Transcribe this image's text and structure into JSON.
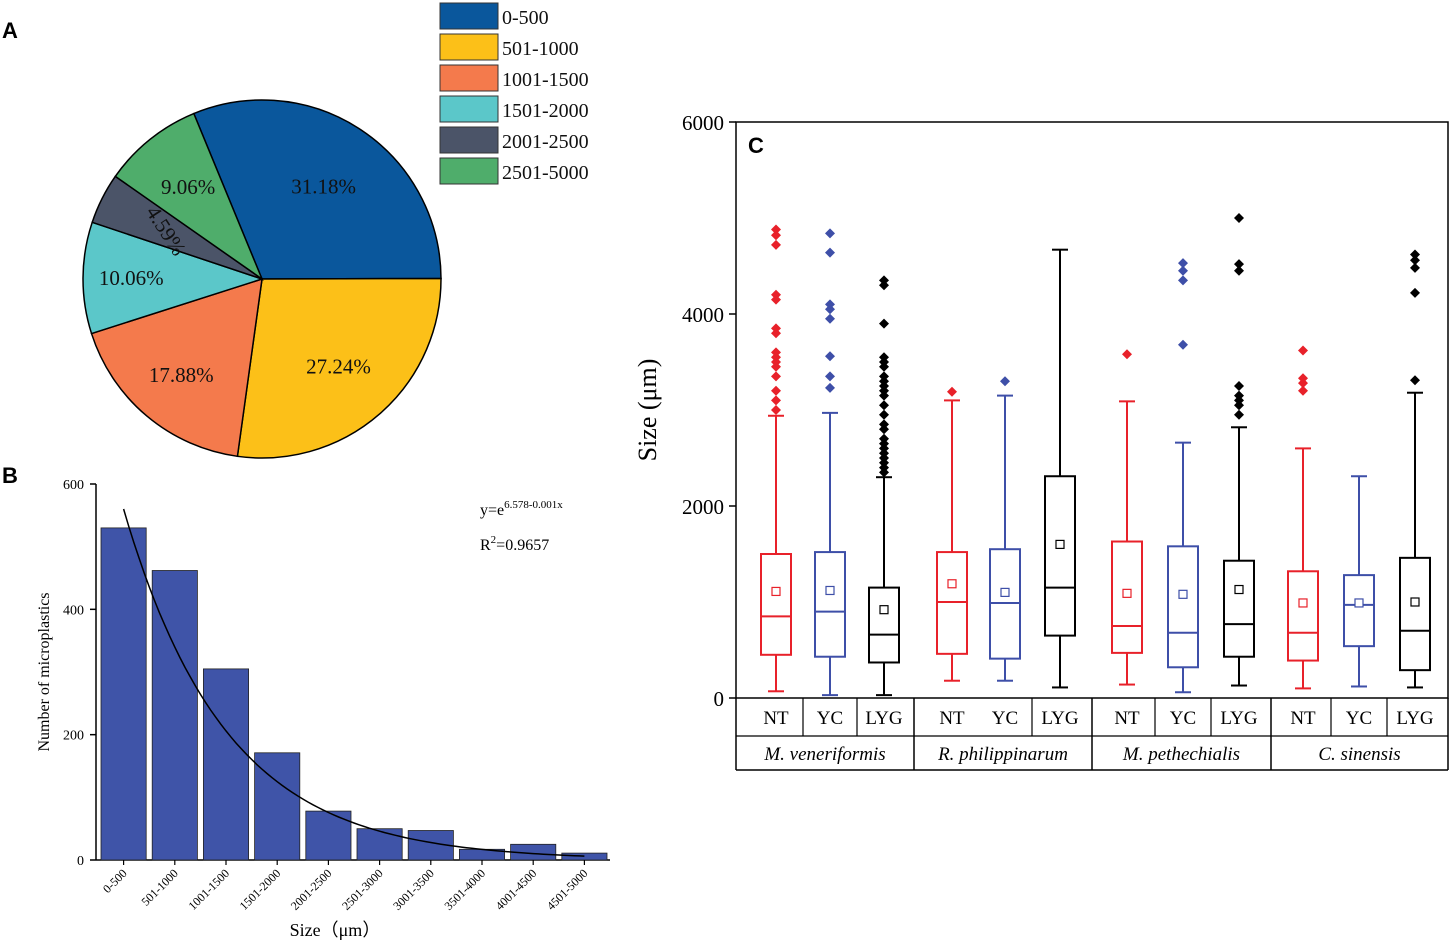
{
  "colors": {
    "pie": [
      "#0a579c",
      "#fcc018",
      "#f47a4c",
      "#5bc7c9",
      "#4b5468",
      "#4fad6b"
    ],
    "bar": "#3f54a8",
    "nt": "#e8212a",
    "yc": "#3e4fa8",
    "lyg": "#000000"
  },
  "chart_data": [
    {
      "panel": "A",
      "type": "pie",
      "categories": [
        "0-500",
        "501-1000",
        "1001-1500",
        "1501-2000",
        "2001-2500",
        "2501-5000"
      ],
      "values": [
        31.18,
        27.24,
        17.88,
        10.06,
        4.59,
        9.06
      ],
      "labels": [
        "31.18%",
        "27.24%",
        "17.88%",
        "10.06%",
        "4.59%",
        "9.06%"
      ],
      "legend": "top-right"
    },
    {
      "panel": "B",
      "type": "bar",
      "categories": [
        "0-500",
        "501-1000",
        "1001-1500",
        "1501-2000",
        "2001-2500",
        "2501-3000",
        "3001-3500",
        "3501-4000",
        "4001-4500",
        "4501-5000"
      ],
      "values": [
        530,
        462,
        305,
        171,
        78,
        50,
        47,
        17,
        25,
        11
      ],
      "xlabel": "Size（μm）",
      "ylabel": "Number of microplastics",
      "ylim": [
        0,
        600
      ],
      "yticks": [
        0,
        200,
        400,
        600
      ],
      "fit": {
        "a": 6.578,
        "b": 0.001
      },
      "equation_base": "y=e",
      "equation_exp": "6.578-0.001x",
      "r2_prefix": "R",
      "r2_sup": "2",
      "r2_value": "=0.9657"
    },
    {
      "panel": "C",
      "type": "box",
      "ylabel": "Size (μm)",
      "ylim": [
        0,
        6000
      ],
      "yticks": [
        0,
        2000,
        4000,
        6000
      ],
      "species": [
        "M. veneriformis",
        "R. philippinarum",
        "M. pethechialis",
        "C. sinensis"
      ],
      "sites": [
        "NT",
        "YC",
        "LYG"
      ],
      "boxes": [
        {
          "site": "NT",
          "min": 70,
          "q1": 450,
          "median": 850,
          "q3": 1500,
          "max": 2940,
          "mean": 1110,
          "outliers": [
            3000,
            3100,
            3200,
            3350,
            3450,
            3500,
            3550,
            3600,
            3800,
            3850,
            4150,
            4200,
            4720,
            4820,
            4880
          ]
        },
        {
          "site": "YC",
          "min": 30,
          "q1": 430,
          "median": 900,
          "q3": 1520,
          "max": 2970,
          "mean": 1120,
          "outliers": [
            3230,
            3350,
            3560,
            3950,
            4050,
            4100,
            4640,
            4840
          ]
        },
        {
          "site": "LYG",
          "min": 30,
          "q1": 370,
          "median": 660,
          "q3": 1150,
          "max": 2300,
          "mean": 920,
          "outliers": [
            2350,
            2400,
            2450,
            2500,
            2550,
            2600,
            2650,
            2700,
            2800,
            2850,
            2950,
            3050,
            3150,
            3200,
            3250,
            3300,
            3350,
            3450,
            3500,
            3550,
            3900,
            4300,
            4350
          ]
        },
        {
          "site": "NT",
          "min": 180,
          "q1": 460,
          "median": 1000,
          "q3": 1520,
          "max": 3100,
          "mean": 1190,
          "outliers": [
            3190
          ]
        },
        {
          "site": "YC",
          "min": 180,
          "q1": 410,
          "median": 990,
          "q3": 1550,
          "max": 3150,
          "mean": 1100,
          "outliers": [
            3300
          ]
        },
        {
          "site": "LYG",
          "min": 110,
          "q1": 650,
          "median": 1150,
          "q3": 2310,
          "max": 4670,
          "mean": 1600,
          "outliers": []
        },
        {
          "site": "NT",
          "min": 140,
          "q1": 470,
          "median": 750,
          "q3": 1630,
          "max": 3090,
          "mean": 1090,
          "outliers": [
            3580
          ]
        },
        {
          "site": "YC",
          "min": 60,
          "q1": 320,
          "median": 680,
          "q3": 1580,
          "max": 2660,
          "mean": 1080,
          "outliers": [
            3680,
            4350,
            4450,
            4530
          ]
        },
        {
          "site": "LYG",
          "min": 130,
          "q1": 430,
          "median": 770,
          "q3": 1430,
          "max": 2820,
          "mean": 1130,
          "outliers": [
            2950,
            3050,
            3100,
            3150,
            3250,
            4450,
            4520,
            5000
          ]
        },
        {
          "site": "NT",
          "min": 100,
          "q1": 390,
          "median": 680,
          "q3": 1320,
          "max": 2600,
          "mean": 990,
          "outliers": [
            3200,
            3280,
            3330,
            3620
          ]
        },
        {
          "site": "YC",
          "min": 120,
          "q1": 540,
          "median": 970,
          "q3": 1280,
          "max": 2310,
          "mean": 990,
          "outliers": []
        },
        {
          "site": "LYG",
          "min": 110,
          "q1": 290,
          "median": 700,
          "q3": 1460,
          "max": 3180,
          "mean": 1000,
          "outliers": [
            3310,
            4220,
            4480,
            4560,
            4620
          ]
        }
      ]
    }
  ],
  "panel_labels": {
    "a": "A",
    "b": "B",
    "c": "C"
  }
}
